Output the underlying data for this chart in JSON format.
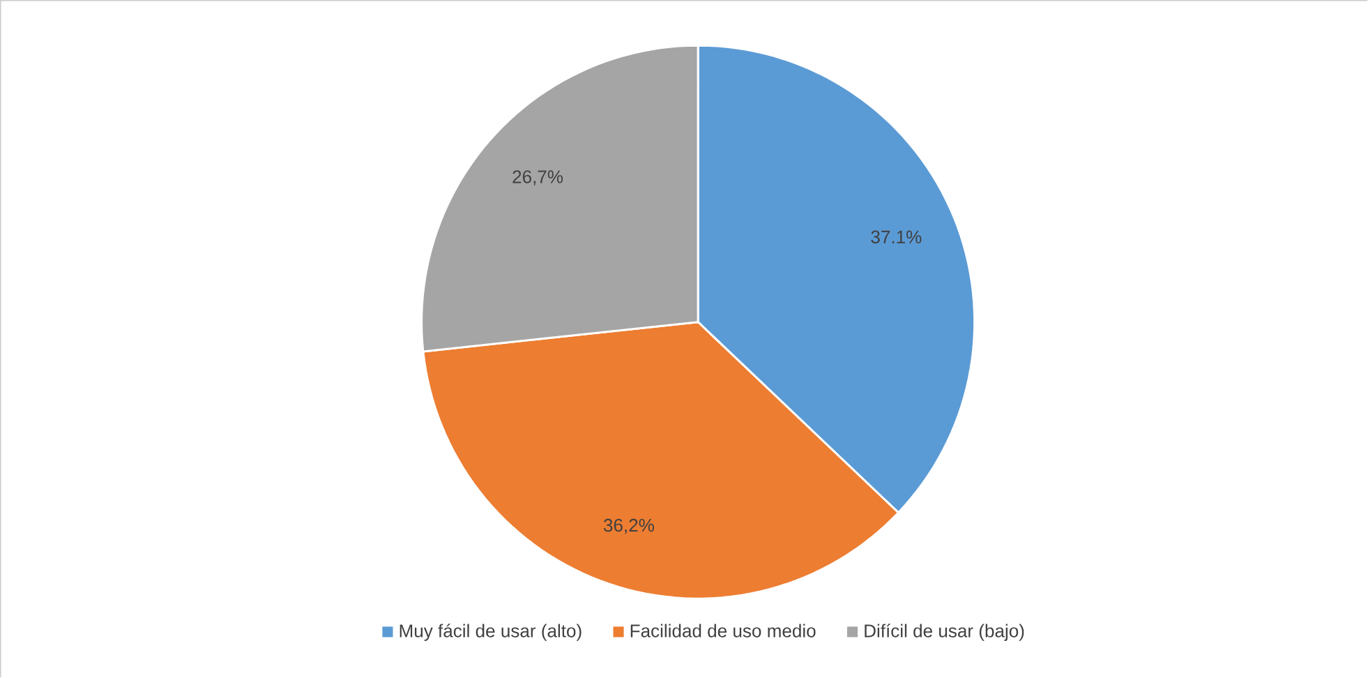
{
  "chart_data": {
    "type": "pie",
    "categories": [
      "Muy fácil de usar (alto)",
      "Facilidad de uso medio",
      "Difícil de usar (bajo)"
    ],
    "values": [
      37.1,
      36.2,
      26.7
    ],
    "colors": [
      "#5b9bd5",
      "#ed7d31",
      "#a5a5a5"
    ],
    "value_labels": [
      "37.1%",
      "36,2%",
      "26,7%"
    ],
    "legend": "bottom"
  }
}
